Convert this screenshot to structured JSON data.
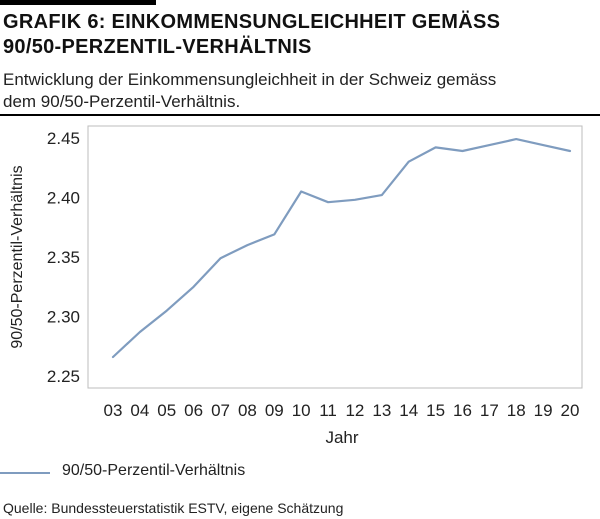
{
  "header": {
    "title_line1": "GRAFIK 6: EINKOMMENSUNGLEICHHEIT GEMÄSS",
    "title_line2": "90/50-PERZENTIL-VERHÄLTNIS",
    "subtitle_line1": "Entwicklung der Einkommensungleichheit in der Schweiz gemäss",
    "subtitle_line2": "dem 90/50-Perzentil-Verhältnis."
  },
  "legend": {
    "label": "90/50-Perzentil-Verhältnis"
  },
  "footer": {
    "source": "Quelle: Bundessteuerstatistik ESTV, eigene Schätzung"
  },
  "chart_data": {
    "type": "line",
    "categories": [
      "03",
      "04",
      "05",
      "06",
      "07",
      "08",
      "09",
      "10",
      "11",
      "12",
      "13",
      "14",
      "15",
      "16",
      "17",
      "18",
      "19",
      "20"
    ],
    "series": [
      {
        "name": "90/50-Perzentil-Verhältnis",
        "values": [
          2.266,
          2.287,
          2.305,
          2.325,
          2.349,
          2.36,
          2.369,
          2.405,
          2.396,
          2.398,
          2.402,
          2.43,
          2.442,
          2.439,
          2.444,
          2.449,
          2.444,
          2.439
        ],
        "color": "#7f9cbf"
      }
    ],
    "xlabel": "Jahr",
    "ylabel": "90/50-Perzentil-Verhältnis",
    "ylim": [
      2.24,
      2.46
    ],
    "yticks": [
      2.25,
      2.3,
      2.35,
      2.4,
      2.45
    ],
    "ytick_labels": [
      "2.25",
      "2.30",
      "2.35",
      "2.40",
      "2.45"
    ],
    "grid": "none",
    "legend_position": "bottom-left"
  }
}
